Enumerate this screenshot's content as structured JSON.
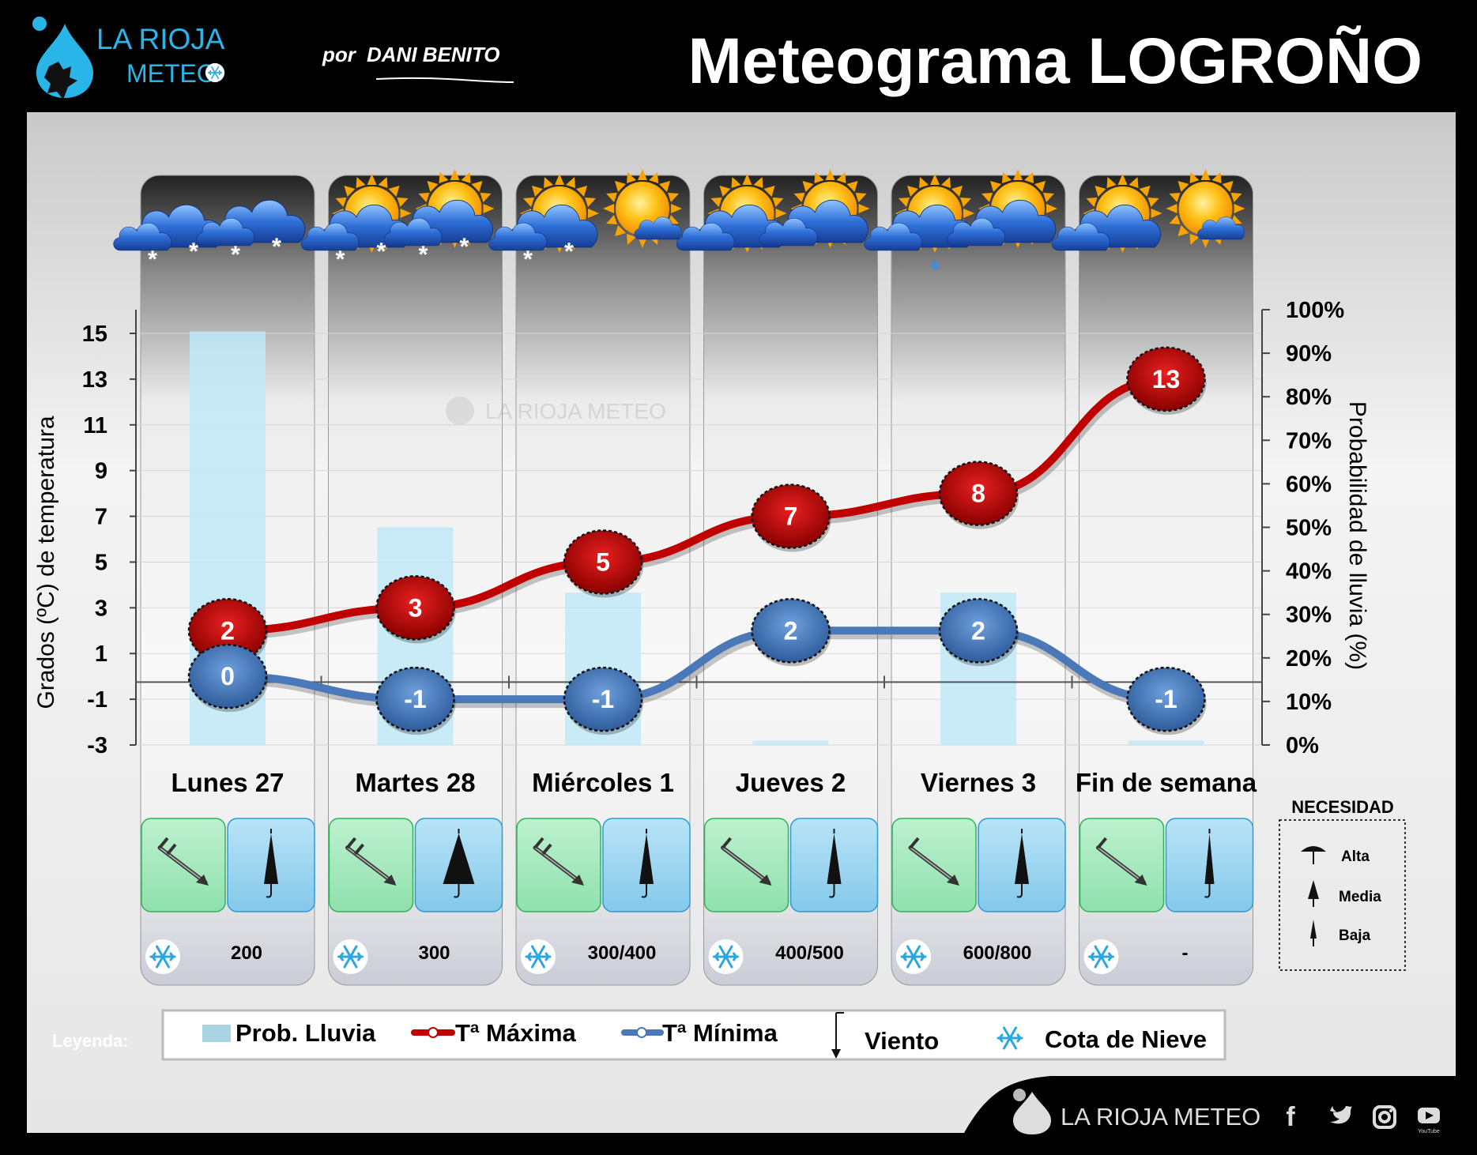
{
  "header": {
    "brand_line1": "LA RIOJA",
    "brand_line2": "METEO",
    "author_prefix": "por",
    "author_name": "DANI BENITO",
    "title": "Meteograma LOGROÑO"
  },
  "chart_data": {
    "type": "line",
    "categories": [
      "Lunes 27",
      "Martes 28",
      "Miércoles 1",
      "Jueves 2",
      "Viernes 3",
      "Fin de semana"
    ],
    "y_left_label": "Grados (ºC) de temperatura",
    "y_left_ticks": [
      15,
      13,
      11,
      9,
      7,
      5,
      3,
      1,
      -1,
      -3
    ],
    "y_left_range": [
      -3,
      16
    ],
    "y_right_label": "Probabilidad de lluvia (%)",
    "y_right_ticks": [
      "100%",
      "90%",
      "80%",
      "70%",
      "60%",
      "50%",
      "40%",
      "30%",
      "20%",
      "10%",
      "0%"
    ],
    "y_right_range": [
      0,
      100
    ],
    "series": [
      {
        "name": "Tª Máxima",
        "values": [
          2,
          3,
          5,
          7,
          8,
          13
        ],
        "color": "#c00000"
      },
      {
        "name": "Tª Mínima",
        "values": [
          0,
          -1,
          -1,
          2,
          2,
          -1
        ],
        "color": "#4a78b8"
      }
    ],
    "rain_probability": {
      "name": "Prob. Lluvia",
      "values": [
        95,
        50,
        35,
        1,
        35,
        1
      ],
      "color": "#bfe9f7"
    }
  },
  "days": [
    {
      "label": "Lunes 27",
      "cota": "200",
      "weather": [
        "cloud-snow",
        "cloud-snow"
      ],
      "umbrella": "media"
    },
    {
      "label": "Martes 28",
      "cota": "300",
      "weather": [
        "sun-cloud-snow",
        "sun-cloud-snow"
      ],
      "umbrella": "alta"
    },
    {
      "label": "Miércoles 1",
      "cota": "300/400",
      "weather": [
        "sun-cloud-snow",
        "sun-small-cloud"
      ],
      "umbrella": "media"
    },
    {
      "label": "Jueves 2",
      "cota": "400/500",
      "weather": [
        "sun-cloud",
        "sun-cloud"
      ],
      "umbrella": "media"
    },
    {
      "label": "Viernes 3",
      "cota": "600/800",
      "weather": [
        "sun-cloud-rain",
        "sun-cloud"
      ],
      "umbrella": "media"
    },
    {
      "label": "Fin de semana",
      "cota": "-",
      "weather": [
        "sun-cloud",
        "sun-small-cloud"
      ],
      "umbrella": "baja"
    }
  ],
  "watermark": "LA RIOJA METEO",
  "necesidad": {
    "title": "NECESIDAD",
    "items": [
      "Alta",
      "Media",
      "Baja"
    ]
  },
  "legend": {
    "label": "Leyenda:",
    "items": [
      "Prob. Lluvia",
      "Tª Máxima",
      "Tª Mínima",
      "Viento",
      "Cota de Nieve"
    ]
  },
  "footer": {
    "brand": "LA RIOJA METEO",
    "youtube": "YouTube",
    "icons": [
      "facebook-icon",
      "twitter-icon",
      "instagram-icon",
      "youtube-icon"
    ]
  },
  "colors": {
    "max": "#c00000",
    "min": "#4a78b8",
    "rain": "#bfe9f7",
    "wind_box": "#a8eac0",
    "umbrella_box": "#9fd6ef",
    "brand_cyan": "#2ab5e8"
  }
}
